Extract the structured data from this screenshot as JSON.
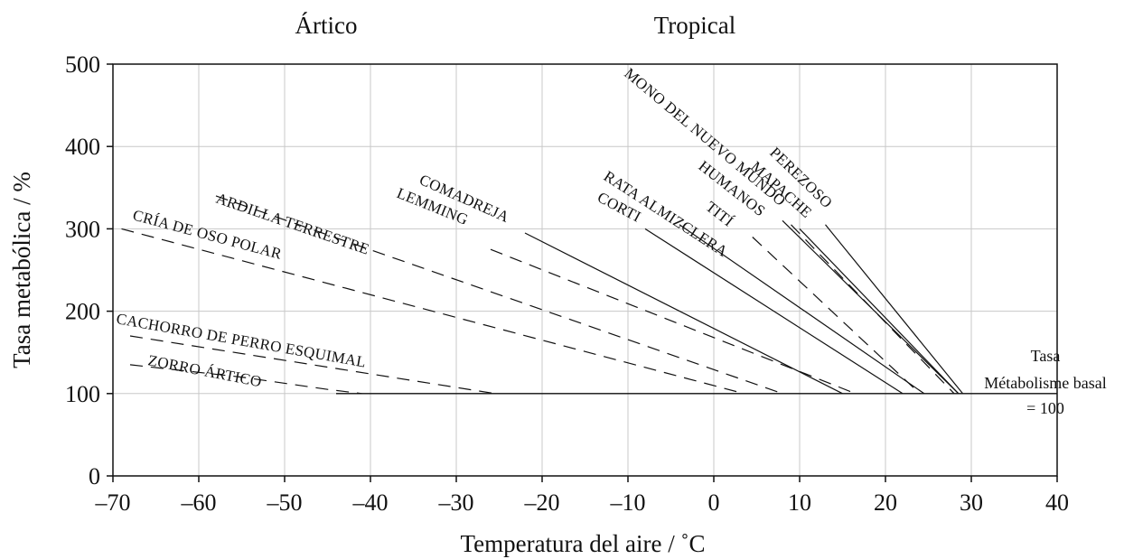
{
  "chart_data": {
    "type": "line",
    "title": "",
    "region_labels": [
      "Ártico",
      "Tropical"
    ],
    "xlabel": "Temperatura del aire / ˚C",
    "ylabel": "Tasa metabólica / %",
    "xlim": [
      -70,
      40
    ],
    "ylim": [
      0,
      500
    ],
    "x_ticks": [
      -70,
      -60,
      -50,
      -40,
      -30,
      -20,
      -10,
      0,
      10,
      20,
      30,
      40
    ],
    "y_ticks": [
      0,
      100,
      200,
      300,
      400,
      500
    ],
    "x_tick_labels": [
      "–70",
      "–60",
      "–50",
      "–40",
      "–30",
      "–20",
      "–10",
      "0",
      "10",
      "20",
      "30",
      "40"
    ],
    "y_tick_labels": [
      "0",
      "100",
      "200",
      "300",
      "400",
      "500"
    ],
    "grid": true,
    "basal_line": {
      "y": 100,
      "x": [
        -44,
        40
      ]
    },
    "basal_note": [
      "Tasa",
      "Métabolisme basal",
      "= 100"
    ],
    "series": [
      {
        "name": "ZORRO ÁRTICO",
        "style": "dashed",
        "points": [
          [
            -68,
            135
          ],
          [
            -55,
            120
          ],
          [
            -45,
            105
          ],
          [
            -41,
            100
          ]
        ]
      },
      {
        "name": "CACHORRO DE PERRO ESQUIMAL",
        "style": "dashed",
        "points": [
          [
            -68,
            170
          ],
          [
            -25.5,
            100
          ]
        ]
      },
      {
        "name": "CRÍA DE OSO POLAR",
        "style": "dashed",
        "points": [
          [
            -69,
            300
          ],
          [
            3.5,
            100
          ]
        ]
      },
      {
        "name": "ARDILLA TERRESTRE",
        "style": "dashed",
        "points": [
          [
            -58,
            340
          ],
          [
            8,
            100
          ]
        ]
      },
      {
        "name": "LEMMING",
        "style": "dashed",
        "points": [
          [
            -26,
            275
          ],
          [
            16.5,
            100
          ]
        ]
      },
      {
        "name": "COMADREJA",
        "style": "solid",
        "points": [
          [
            -22,
            295
          ],
          [
            15,
            100
          ]
        ]
      },
      {
        "name": "CORTI",
        "style": "solid",
        "points": [
          [
            -8,
            300
          ],
          [
            22,
            100
          ]
        ]
      },
      {
        "name": "RATA ALMIZCLERA",
        "style": "solid",
        "points": [
          [
            -4,
            305
          ],
          [
            24.5,
            100
          ]
        ]
      },
      {
        "name": "TITÍ",
        "style": "dashed",
        "points": [
          [
            4.5,
            290
          ],
          [
            24,
            100
          ]
        ]
      },
      {
        "name": "HUMANOS",
        "style": "dashed",
        "points": [
          [
            9,
            305
          ],
          [
            28,
            100
          ]
        ]
      },
      {
        "name": "MONO DEL NUEVO MUNDO",
        "style": "solid",
        "points": [
          [
            8,
            310
          ],
          [
            28.5,
            100
          ]
        ]
      },
      {
        "name": "MAPACHE",
        "style": "solid",
        "points": [
          [
            10,
            300
          ],
          [
            28.5,
            100
          ]
        ]
      },
      {
        "name": "PEREZOSO",
        "style": "solid",
        "points": [
          [
            13,
            305
          ],
          [
            29,
            100
          ]
        ]
      }
    ]
  }
}
